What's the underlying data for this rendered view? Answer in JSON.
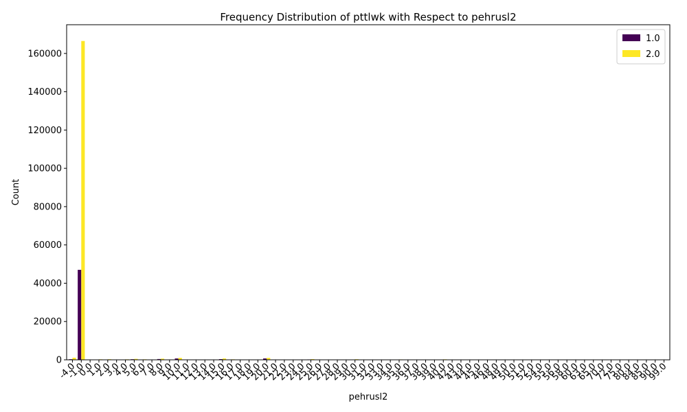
{
  "chart_data": {
    "type": "bar",
    "title": "Frequency Distribution of pttlwk with Respect to pehrusl2",
    "xlabel": "pehrusl2",
    "ylabel": "Count",
    "ylim": [
      0,
      175000
    ],
    "yticks": [
      0,
      20000,
      40000,
      60000,
      80000,
      100000,
      120000,
      140000,
      160000
    ],
    "categories": [
      "-4.0",
      "-1.0",
      "0.0",
      "1.0",
      "2.0",
      "3.0",
      "4.0",
      "5.0",
      "6.0",
      "7.0",
      "8.0",
      "9.0",
      "10.0",
      "11.0",
      "12.0",
      "13.0",
      "14.0",
      "15.0",
      "16.0",
      "17.0",
      "18.0",
      "19.0",
      "20.0",
      "21.0",
      "22.0",
      "23.0",
      "24.0",
      "25.0",
      "26.0",
      "27.0",
      "28.0",
      "29.0",
      "30.0",
      "31.0",
      "32.0",
      "33.0",
      "34.0",
      "35.0",
      "36.0",
      "37.0",
      "38.0",
      "39.0",
      "40.0",
      "42.0",
      "43.0",
      "44.0",
      "45.0",
      "46.0",
      "48.0",
      "49.0",
      "50.0",
      "51.0",
      "52.0",
      "54.0",
      "55.0",
      "56.0",
      "58.0",
      "60.0",
      "63.0",
      "65.0",
      "70.0",
      "72.0",
      "75.0",
      "80.0",
      "84.0",
      "85.0",
      "90.0",
      "99.0"
    ],
    "series": [
      {
        "name": "1.0",
        "color": "#440154",
        "values": [
          300,
          47000,
          50,
          80,
          100,
          50,
          100,
          300,
          150,
          50,
          400,
          50,
          700,
          50,
          80,
          30,
          50,
          350,
          150,
          30,
          60,
          30,
          700,
          30,
          50,
          20,
          50,
          200,
          20,
          20,
          30,
          10,
          150,
          10,
          20,
          10,
          10,
          100,
          10,
          10,
          10,
          5,
          100,
          5,
          5,
          5,
          20,
          5,
          10,
          5,
          30,
          5,
          5,
          5,
          5,
          5,
          5,
          10,
          5,
          5,
          5,
          5,
          5,
          5,
          5,
          5,
          5,
          5
        ]
      },
      {
        "name": "2.0",
        "color": "#fde725",
        "values": [
          1100,
          166500,
          100,
          250,
          300,
          150,
          250,
          500,
          250,
          100,
          600,
          100,
          1000,
          100,
          150,
          50,
          100,
          700,
          250,
          50,
          100,
          50,
          1000,
          50,
          100,
          30,
          100,
          350,
          30,
          30,
          50,
          20,
          300,
          20,
          30,
          20,
          20,
          200,
          20,
          20,
          20,
          10,
          250,
          10,
          10,
          10,
          30,
          10,
          20,
          10,
          50,
          10,
          10,
          10,
          10,
          10,
          10,
          20,
          10,
          10,
          10,
          10,
          10,
          10,
          10,
          10,
          10,
          10
        ]
      }
    ],
    "legend": {
      "placement": "top-right"
    },
    "grid": false
  }
}
